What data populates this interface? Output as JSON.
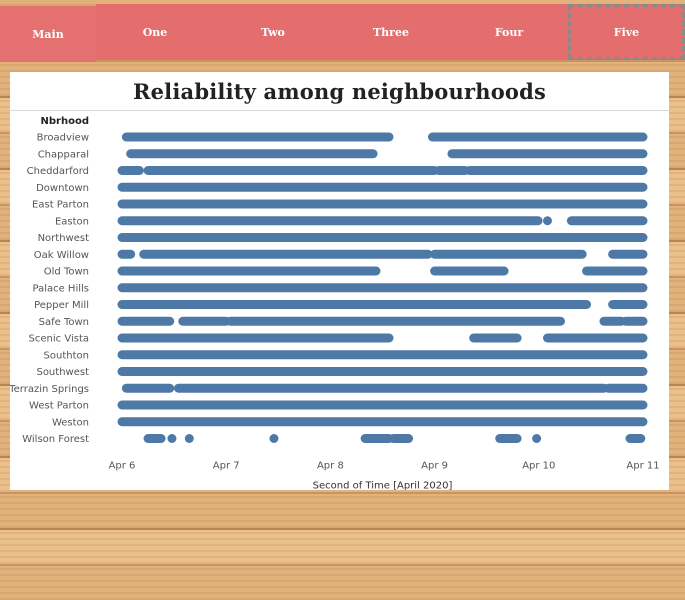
{
  "nav": {
    "tabs": [
      {
        "label": "Main",
        "selected": false
      },
      {
        "label": "One",
        "selected": false
      },
      {
        "label": "Two",
        "selected": false
      },
      {
        "label": "Three",
        "selected": false
      },
      {
        "label": "Four",
        "selected": false
      },
      {
        "label": "Five",
        "selected": true
      }
    ]
  },
  "colors": {
    "tab": "#e46e6e",
    "mark": "#4e79a7"
  },
  "chart_data": {
    "type": "scatter",
    "title": "Reliability among neighbourhoods",
    "row_header": "Nbrhood",
    "xlabel": "Second of Time [April 2020]",
    "x_ticks": [
      "Apr 6",
      "Apr 7",
      "Apr 8",
      "Apr 9",
      "Apr 10",
      "Apr 11"
    ],
    "xlim": [
      "2020-04-06",
      "2020-04-11"
    ],
    "grid": false,
    "rows": [
      {
        "name": "Broadview",
        "segments": [
          [
            "2020-04-06 01:00",
            "2020-04-08 13:30"
          ],
          [
            "2020-04-08 23:30",
            "2020-04-11"
          ]
        ],
        "points": []
      },
      {
        "name": "Chapparal",
        "segments": [
          [
            "2020-04-06 02:00",
            "2020-04-08 09:50"
          ],
          [
            "2020-04-09 04:00",
            "2020-04-11"
          ]
        ],
        "points": []
      },
      {
        "name": "Cheddarford",
        "segments": [
          [
            "2020-04-06 00:00",
            "2020-04-06 04:00"
          ],
          [
            "2020-04-06 06:00",
            "2020-04-09 00:00"
          ],
          [
            "2020-04-09 01:00",
            "2020-04-09 07:00"
          ],
          [
            "2020-04-09 08:00",
            "2020-04-11"
          ]
        ],
        "points": []
      },
      {
        "name": "Downtown",
        "segments": [
          [
            "2020-04-06 00:00",
            "2020-04-11"
          ]
        ],
        "points": []
      },
      {
        "name": "East Parton",
        "segments": [
          [
            "2020-04-06 00:00",
            "2020-04-11"
          ]
        ],
        "points": []
      },
      {
        "name": "Easton",
        "segments": [
          [
            "2020-04-06 00:00",
            "2020-04-09 23:50"
          ],
          [
            "2020-04-10 07:30",
            "2020-04-11"
          ]
        ],
        "points": [
          "2020-04-10 02:00"
        ]
      },
      {
        "name": "Northwest",
        "segments": [
          [
            "2020-04-06 00:00",
            "2020-04-11"
          ]
        ],
        "points": []
      },
      {
        "name": "Oak Willow",
        "segments": [
          [
            "2020-04-06 00:00",
            "2020-04-06 02:00"
          ],
          [
            "2020-04-06 05:00",
            "2020-04-08 22:30"
          ],
          [
            "2020-04-09 00:00",
            "2020-04-10 10:00"
          ],
          [
            "2020-04-10 17:00",
            "2020-04-11"
          ]
        ],
        "points": []
      },
      {
        "name": "Old Town",
        "segments": [
          [
            "2020-04-06 00:00",
            "2020-04-08 10:30"
          ],
          [
            "2020-04-09 00:00",
            "2020-04-09 16:00"
          ],
          [
            "2020-04-10 11:00",
            "2020-04-11"
          ]
        ],
        "points": []
      },
      {
        "name": "Palace Hills",
        "segments": [
          [
            "2020-04-06 00:00",
            "2020-04-11"
          ]
        ],
        "points": []
      },
      {
        "name": "Pepper Mill",
        "segments": [
          [
            "2020-04-06 00:00",
            "2020-04-10 11:00"
          ],
          [
            "2020-04-10 17:00",
            "2020-04-11"
          ]
        ],
        "points": []
      },
      {
        "name": "Safe Town",
        "segments": [
          [
            "2020-04-06 00:00",
            "2020-04-06 11:00"
          ],
          [
            "2020-04-06 14:00",
            "2020-04-07 00:00"
          ],
          [
            "2020-04-07 01:00",
            "2020-04-10 05:00"
          ],
          [
            "2020-04-10 15:00",
            "2020-04-10 19:00"
          ],
          [
            "2020-04-10 20:00",
            "2020-04-11"
          ]
        ],
        "points": []
      },
      {
        "name": "Scenic Vista",
        "segments": [
          [
            "2020-04-06 00:00",
            "2020-04-08 13:30"
          ],
          [
            "2020-04-09 09:00",
            "2020-04-09 19:00"
          ],
          [
            "2020-04-10 02:00",
            "2020-04-11"
          ]
        ],
        "points": []
      },
      {
        "name": "Southton",
        "segments": [
          [
            "2020-04-06 00:00",
            "2020-04-11"
          ]
        ],
        "points": []
      },
      {
        "name": "Southwest",
        "segments": [
          [
            "2020-04-06 00:00",
            "2020-04-11"
          ]
        ],
        "points": []
      },
      {
        "name": "Terrazin Springs",
        "segments": [
          [
            "2020-04-06 01:00",
            "2020-04-06 11:00"
          ],
          [
            "2020-04-06 13:00",
            "2020-04-10 15:00"
          ],
          [
            "2020-04-10 16:00",
            "2020-04-11"
          ]
        ],
        "points": []
      },
      {
        "name": "West Parton",
        "segments": [
          [
            "2020-04-06 00:00",
            "2020-04-11"
          ]
        ],
        "points": []
      },
      {
        "name": "Weston",
        "segments": [
          [
            "2020-04-06 00:00",
            "2020-04-11"
          ]
        ],
        "points": []
      },
      {
        "name": "Wilson Forest",
        "segments": [
          [
            "2020-04-06 06:00",
            "2020-04-06 09:00"
          ],
          [
            "2020-04-08 08:00",
            "2020-04-08 13:30"
          ],
          [
            "2020-04-08 14:30",
            "2020-04-08 18:00"
          ],
          [
            "2020-04-09 15:00",
            "2020-04-09 19:00"
          ],
          [
            "2020-04-10 21:00",
            "2020-04-10 23:30"
          ]
        ],
        "points": [
          "2020-04-06 11:30",
          "2020-04-06 15:30",
          "2020-04-07 11:00",
          "2020-04-09 23:30"
        ]
      }
    ]
  }
}
